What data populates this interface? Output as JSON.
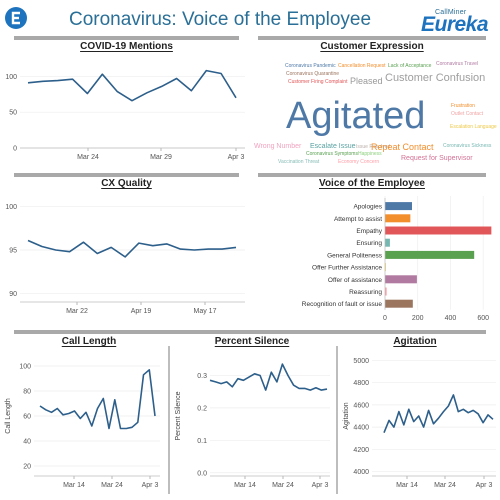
{
  "header": {
    "title": "Coronavirus: Voice of the Employee",
    "brand_small": "CallMiner",
    "brand_big": "Eureka",
    "accent": "#2a6f97"
  },
  "word_cloud": {
    "title": "Customer Expression",
    "words": [
      {
        "text": "Coronavirus Pandemic",
        "color": "#4e79a7"
      },
      {
        "text": "Cancellation Request",
        "color": "#f28e2b"
      },
      {
        "text": "Lack of Acceptance",
        "color": "#59a14f"
      },
      {
        "text": "Coronavirus Travel",
        "color": "#b07aa1"
      },
      {
        "text": "Coronavirus Quarantine",
        "color": "#9c755f"
      },
      {
        "text": "Customer Firing Complaint",
        "color": "#e15759"
      },
      {
        "text": "Pleased",
        "color": "#999999"
      },
      {
        "text": "Customer Confusion",
        "color": "#9e9e9e"
      },
      {
        "text": "Agitated",
        "color": "#4e79a7"
      },
      {
        "text": "Frustration",
        "color": "#f28e2b"
      },
      {
        "text": "Outlet Contact",
        "color": "#f1a3a3"
      },
      {
        "text": "Escalation Language",
        "color": "#edc948"
      },
      {
        "text": "Wrong Number",
        "color": "#f1a3c0"
      },
      {
        "text": "Escalate Issue",
        "color": "#59a1a1"
      },
      {
        "text": "Issue Resolved",
        "color": "#bab0ac"
      },
      {
        "text": "Repeat Contact",
        "color": "#f28e2b"
      },
      {
        "text": "Coronavirus Sickness",
        "color": "#76b7b2"
      },
      {
        "text": "Coronavirus Symptoms",
        "color": "#59a14f"
      },
      {
        "text": "Happiness",
        "color": "#8cd17d"
      },
      {
        "text": "Request for Supervisor",
        "color": "#d37295"
      },
      {
        "text": "Vaccination Threat",
        "color": "#86bcb6"
      },
      {
        "text": "Economy Concern",
        "color": "#ff9da7"
      }
    ]
  },
  "chart_data": [
    {
      "id": "mentions",
      "type": "line",
      "title": "COVID-19 Mentions",
      "x_ticks": [
        "Mar 24",
        "Mar 29",
        "Apr 3"
      ],
      "y_ticks": [
        "100",
        "50",
        "0"
      ],
      "ylim": [
        0,
        120
      ],
      "ylabel": "",
      "series": [
        {
          "values": [
            91,
            93,
            94,
            96,
            76,
            103,
            79,
            66,
            77,
            86,
            97,
            80,
            108,
            104,
            70
          ]
        }
      ]
    },
    {
      "id": "cx_quality",
      "type": "line",
      "title": "CX Quality",
      "x_ticks": [
        "Mar 22",
        "Apr 19",
        "May 17"
      ],
      "y_ticks": [
        "100",
        "95",
        "90"
      ],
      "ylim": [
        89,
        101
      ],
      "ylabel": "",
      "series": [
        {
          "values": [
            96.1,
            95.4,
            95.0,
            94.8,
            95.9,
            94.6,
            95.3,
            94.2,
            95.8,
            95.5,
            95.7,
            95.1,
            95.0,
            95.1,
            95.1,
            95.3
          ]
        }
      ]
    },
    {
      "id": "voe",
      "type": "bar",
      "orientation": "horizontal",
      "title": "Voice of the Employee",
      "categories": [
        "Apologies",
        "Attempt to assist",
        "Empathy",
        "Ensuring",
        "General Politeness",
        "Offer Further Assistance",
        "Offer of assistance",
        "Reassuring",
        "Recognition of fault or issue"
      ],
      "values": [
        165,
        155,
        650,
        30,
        545,
        5,
        195,
        10,
        170
      ],
      "colors": [
        "#4e79a7",
        "#f28e2b",
        "#e15759",
        "#76b7b2",
        "#59a14f",
        "#edc948",
        "#b07aa1",
        "#ff9da7",
        "#9c755f"
      ],
      "x_ticks": [
        "0",
        "200",
        "400",
        "600"
      ],
      "xlim": [
        0,
        660
      ]
    },
    {
      "id": "call_length",
      "type": "line",
      "title": "Call Length",
      "ylabel": "Call Length",
      "x_ticks": [
        "Mar 14",
        "Mar 24",
        "Apr 3"
      ],
      "y_ticks": [
        "100",
        "80",
        "60",
        "40",
        "20"
      ],
      "ylim": [
        12,
        108
      ],
      "series": [
        {
          "values": [
            68,
            65,
            63,
            66,
            61,
            62,
            64,
            58,
            63,
            52,
            66,
            74,
            50,
            73,
            50,
            50,
            51,
            55,
            93,
            97,
            60
          ]
        }
      ]
    },
    {
      "id": "percent_silence",
      "type": "line",
      "title": "Percent Silence",
      "ylabel": "Percent Silence",
      "x_ticks": [
        "Mar 14",
        "Mar 24",
        "Apr 3"
      ],
      "y_ticks": [
        "0.3",
        "0.2",
        "0.1",
        "0.0"
      ],
      "ylim": [
        -0.01,
        0.36
      ],
      "series": [
        {
          "values": [
            0.285,
            0.28,
            0.275,
            0.28,
            0.265,
            0.29,
            0.285,
            0.295,
            0.305,
            0.3,
            0.255,
            0.31,
            0.28,
            0.335,
            0.3,
            0.27,
            0.26,
            0.26,
            0.255,
            0.262,
            0.255,
            0.258
          ]
        }
      ]
    },
    {
      "id": "agitation",
      "type": "line",
      "title": "Agitation",
      "ylabel": "Agitation",
      "x_ticks": [
        "Mar 14",
        "Mar 24",
        "Apr 3"
      ],
      "y_ticks": [
        "5000",
        "4800",
        "4600",
        "4400",
        "4200",
        "4000"
      ],
      "ylim": [
        3960,
        5040
      ],
      "series": [
        {
          "values": [
            4350,
            4460,
            4400,
            4540,
            4420,
            4560,
            4450,
            4500,
            4400,
            4550,
            4430,
            4480,
            4540,
            4590,
            4690,
            4540,
            4560,
            4530,
            4550,
            4520,
            4440,
            4510,
            4470
          ]
        }
      ]
    }
  ]
}
